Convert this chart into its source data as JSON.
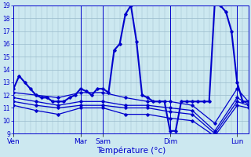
{
  "xlabel": "Température (°c)",
  "ylim": [
    9,
    19
  ],
  "yticks": [
    9,
    10,
    11,
    12,
    13,
    14,
    15,
    16,
    17,
    18,
    19
  ],
  "day_labels": [
    "Ven",
    "Mar",
    "Sam",
    "Dim",
    "Lun"
  ],
  "day_positions": [
    0,
    12,
    16,
    28,
    40
  ],
  "xlim_max": 42,
  "background_color": "#cce8f0",
  "grid_color": "#99bbcc",
  "line_color": "#0000cc",
  "series": [
    {
      "x": [
        0,
        1,
        2,
        3,
        4,
        5,
        6,
        7,
        8,
        9,
        10,
        11,
        12,
        13,
        14,
        15,
        16,
        17,
        18,
        19,
        20,
        21,
        22,
        23,
        24,
        25,
        26,
        27,
        28,
        29,
        30,
        31,
        32,
        33,
        34,
        35,
        36,
        37,
        38,
        39,
        40,
        41,
        42
      ],
      "y": [
        12.5,
        13.5,
        13.0,
        12.5,
        12.0,
        11.8,
        11.8,
        11.5,
        11.5,
        11.5,
        11.8,
        12.0,
        12.5,
        12.3,
        12.0,
        12.5,
        12.5,
        12.2,
        15.5,
        16.0,
        18.3,
        19.0,
        16.2,
        12.0,
        11.8,
        11.5,
        11.5,
        11.5,
        9.2,
        9.2,
        11.5,
        11.5,
        11.5,
        11.5,
        11.5,
        11.5,
        19.2,
        19.0,
        18.5,
        17.0,
        13.0,
        11.5,
        11.5
      ],
      "lw": 1.5
    },
    {
      "x": [
        0,
        4,
        8,
        12,
        16,
        20,
        24,
        28,
        32,
        36,
        40,
        42
      ],
      "y": [
        12.2,
        12.0,
        11.8,
        12.2,
        12.2,
        11.8,
        11.5,
        11.5,
        11.2,
        9.8,
        12.5,
        11.5
      ],
      "lw": 0.9
    },
    {
      "x": [
        0,
        4,
        8,
        12,
        16,
        20,
        24,
        28,
        32,
        36,
        40,
        42
      ],
      "y": [
        11.8,
        11.5,
        11.2,
        11.5,
        11.5,
        11.2,
        11.2,
        11.0,
        10.8,
        9.2,
        11.8,
        11.3
      ],
      "lw": 0.9
    },
    {
      "x": [
        0,
        4,
        8,
        12,
        16,
        20,
        24,
        28,
        32,
        36,
        40,
        42
      ],
      "y": [
        11.5,
        11.2,
        11.0,
        11.2,
        11.2,
        11.0,
        11.0,
        10.7,
        10.5,
        9.0,
        11.5,
        11.2
      ],
      "lw": 0.9
    },
    {
      "x": [
        0,
        4,
        8,
        12,
        16,
        20,
        24,
        28,
        32,
        36,
        40,
        42
      ],
      "y": [
        11.2,
        10.8,
        10.5,
        11.0,
        11.0,
        10.5,
        10.5,
        10.2,
        10.0,
        8.8,
        11.2,
        11.0
      ],
      "lw": 0.9
    }
  ]
}
